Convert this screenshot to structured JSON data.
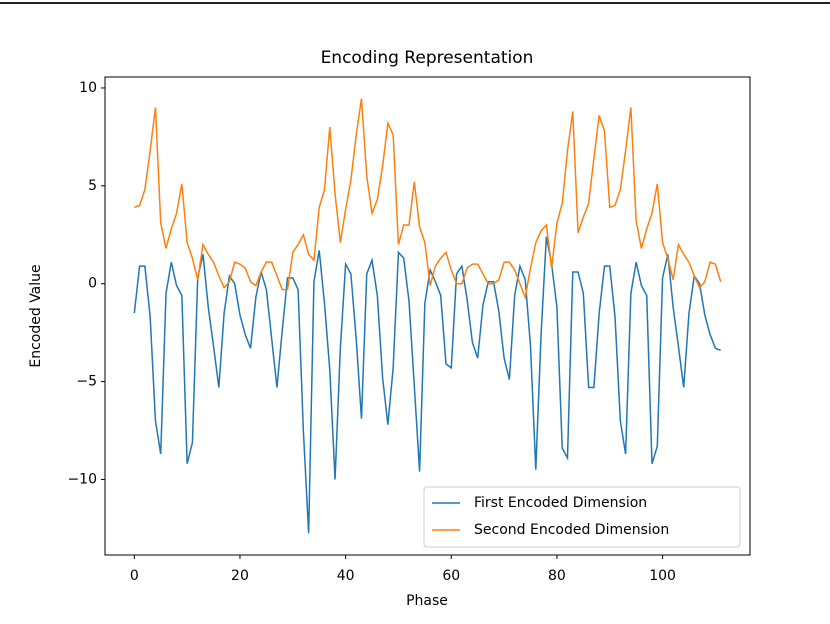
{
  "chart_data": {
    "type": "line",
    "title": "Encoding Representation",
    "xlabel": "Phase",
    "ylabel": "Encoded Value",
    "x": [
      0,
      1,
      2,
      3,
      4,
      5,
      6,
      7,
      8,
      9,
      10,
      11,
      12,
      13,
      14,
      15,
      16,
      17,
      18,
      19,
      20,
      21,
      22,
      23,
      24,
      25,
      26,
      27,
      28,
      29,
      30,
      31,
      32,
      33,
      34,
      35,
      36,
      37,
      38,
      39,
      40,
      41,
      42,
      43,
      44,
      45,
      46,
      47,
      48,
      49,
      50,
      51,
      52,
      53,
      54,
      55,
      56,
      57,
      58,
      59,
      60,
      61,
      62,
      63,
      64,
      65,
      66,
      67,
      68,
      69,
      70,
      71,
      72,
      73,
      74,
      75,
      76,
      77,
      78,
      79,
      80,
      81,
      82,
      83,
      84,
      85,
      86,
      87,
      88,
      89,
      90,
      91,
      92,
      93,
      94,
      95,
      96,
      97,
      98,
      99,
      100,
      101,
      102,
      103,
      104,
      105,
      106,
      107,
      108,
      109,
      110,
      111
    ],
    "series": [
      {
        "name": "First Encoded Dimension",
        "color": "#1f77b4",
        "values": [
          -1.5,
          0.9,
          0.9,
          -1.7,
          -7.0,
          -8.7,
          -0.5,
          1.1,
          -0.1,
          -0.6,
          -9.2,
          -8.1,
          0.3,
          1.5,
          -1.2,
          -3.2,
          -5.3,
          -1.5,
          0.4,
          0.0,
          -1.6,
          -2.6,
          -3.3,
          -0.7,
          0.6,
          -0.3,
          -2.8,
          -5.3,
          -2.4,
          0.3,
          0.3,
          -0.3,
          -7.5,
          -12.75,
          0.1,
          1.7,
          -1.0,
          -4.4,
          -10.0,
          -3.3,
          1.0,
          0.5,
          -2.8,
          -6.9,
          0.5,
          1.2,
          -0.6,
          -4.8,
          -7.2,
          -4.3,
          1.6,
          1.3,
          -0.9,
          -5.2,
          -9.6,
          -1.0,
          0.7,
          0.1,
          -0.6,
          -4.1,
          -4.3,
          0.5,
          0.9,
          -0.8,
          -3.0,
          -3.8,
          -1.1,
          0.1,
          0.1,
          -1.4,
          -3.8,
          -4.9,
          -0.6,
          0.9,
          0.2,
          -3.2,
          -9.5,
          -2.6,
          2.4,
          1.0,
          -1.2,
          -8.4,
          -8.9,
          0.6,
          0.6,
          -0.5,
          -5.3,
          -5.3,
          -1.5,
          0.9,
          0.9,
          -1.7,
          -7.0,
          -8.7,
          -0.5,
          1.1,
          -0.1,
          -0.6,
          -9.2,
          -8.3,
          0.3,
          1.5,
          -1.2,
          -3.2,
          -5.3,
          -1.5,
          0.4,
          0.0,
          -1.6,
          -2.6,
          -3.3,
          -3.4
        ]
      },
      {
        "name": "Second Encoded Dimension",
        "color": "#ff7f0e",
        "values": [
          3.9,
          4.0,
          4.8,
          6.8,
          9.0,
          3.1,
          1.8,
          2.8,
          3.6,
          5.1,
          2.1,
          1.3,
          0.2,
          2.0,
          1.5,
          1.1,
          0.4,
          -0.2,
          0.1,
          1.1,
          1.0,
          0.8,
          0.1,
          -0.1,
          0.6,
          1.1,
          1.1,
          0.4,
          -0.3,
          -0.3,
          1.6,
          2.0,
          2.5,
          1.5,
          1.2,
          3.9,
          4.8,
          8.0,
          4.6,
          2.1,
          3.8,
          5.3,
          7.6,
          9.45,
          5.5,
          3.6,
          4.3,
          6.0,
          8.2,
          7.6,
          2.0,
          3.0,
          3.0,
          5.2,
          2.9,
          2.1,
          -0.1,
          0.9,
          1.3,
          1.6,
          0.7,
          0.0,
          0.0,
          0.8,
          1.0,
          1.0,
          0.5,
          0.0,
          0.0,
          0.2,
          1.1,
          1.1,
          0.7,
          0.0,
          -0.7,
          0.8,
          2.1,
          2.7,
          3.0,
          0.8,
          3.1,
          4.1,
          6.8,
          8.8,
          2.6,
          3.4,
          4.1,
          6.4,
          8.6,
          7.8,
          3.9,
          4.0,
          4.8,
          6.8,
          9.0,
          3.2,
          1.8,
          2.8,
          3.6,
          5.1,
          2.1,
          1.3,
          0.2,
          2.0,
          1.5,
          1.1,
          0.4,
          -0.2,
          0.1,
          1.1,
          1.0,
          0.1
        ]
      }
    ],
    "xlim": [
      -5.55,
      116.55
    ],
    "xticks": [
      0,
      20,
      40,
      60,
      80,
      100
    ],
    "ylim": [
      -13.86,
      10.56
    ],
    "yticks": [
      {
        "value": -10,
        "label": "−10"
      },
      {
        "value": -5,
        "label": "−5"
      },
      0,
      5,
      10
    ],
    "legend": "lower right",
    "grid": false
  }
}
